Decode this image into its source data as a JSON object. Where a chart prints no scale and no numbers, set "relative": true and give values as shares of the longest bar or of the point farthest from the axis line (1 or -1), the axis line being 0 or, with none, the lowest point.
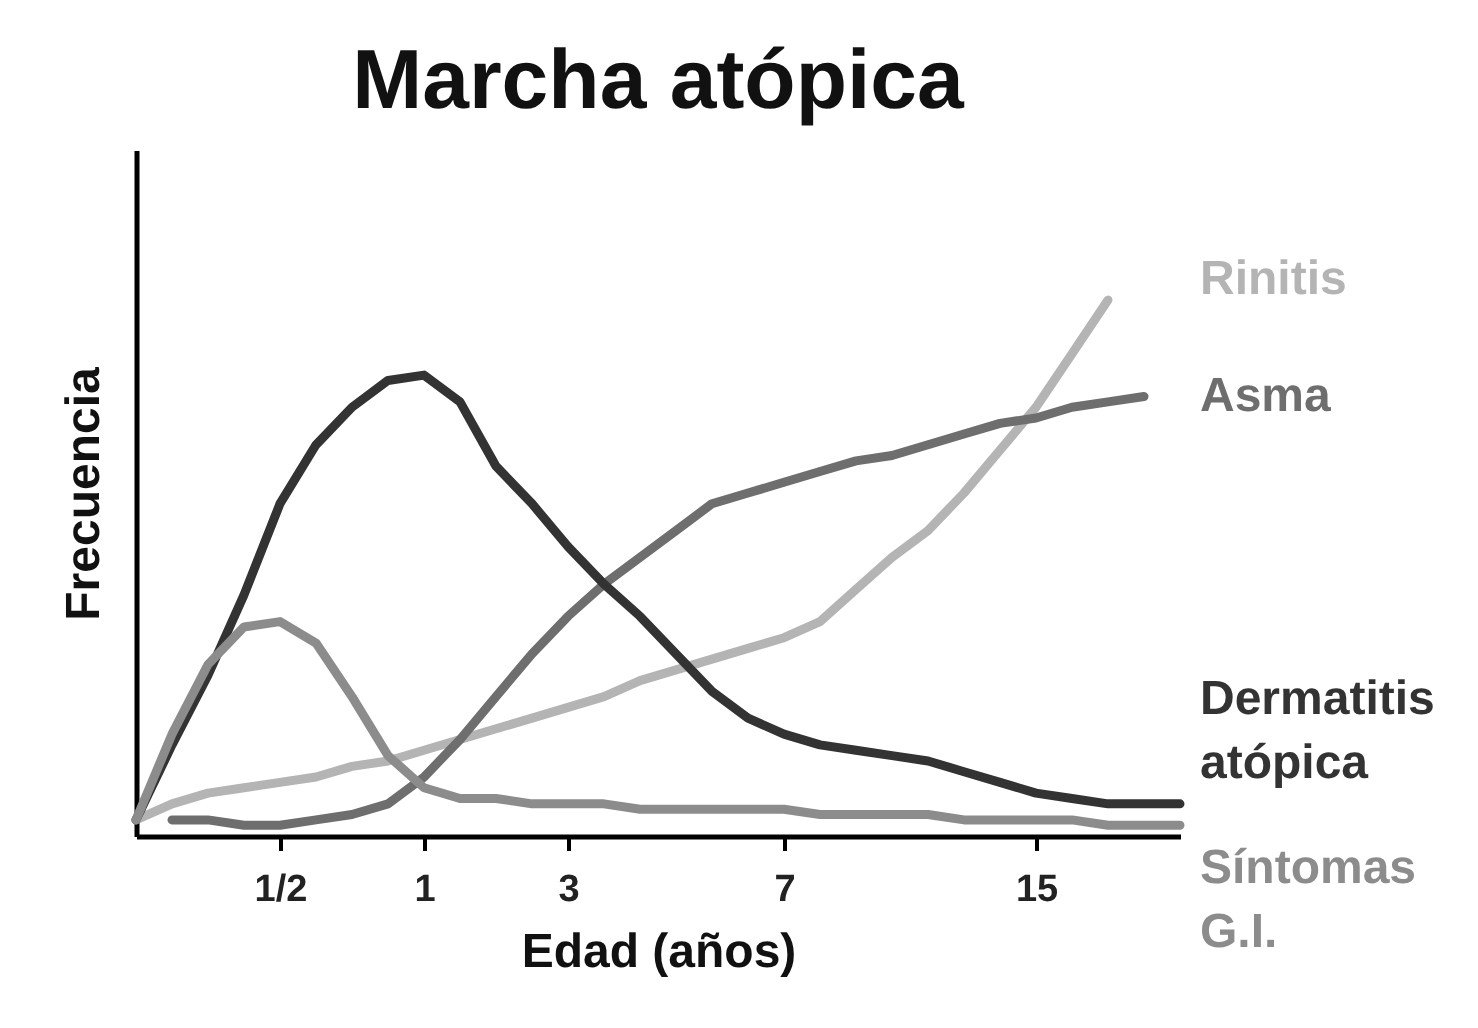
{
  "chart_data": {
    "type": "line",
    "title": "Marcha atópica",
    "xlabel": "Edad (años)",
    "ylabel": "Frecuencia",
    "relative": true,
    "categories": [
      null,
      null,
      null,
      null,
      "1/2",
      null,
      null,
      null,
      "1",
      null,
      null,
      null,
      "3",
      null,
      null,
      null,
      null,
      null,
      "7",
      null,
      null,
      null,
      null,
      null,
      null,
      "15",
      null,
      null,
      null,
      null
    ],
    "series": [
      {
        "name": "Rinitis",
        "color": "#b4b4b4",
        "values": [
          0.03,
          0.06,
          0.08,
          0.09,
          0.1,
          0.11,
          0.13,
          0.14,
          0.16,
          0.18,
          0.2,
          0.22,
          0.24,
          0.26,
          0.29,
          0.31,
          0.33,
          0.35,
          0.37,
          0.4,
          0.46,
          0.52,
          0.57,
          0.64,
          0.72,
          0.8,
          0.9,
          1.0,
          null,
          null
        ]
      },
      {
        "name": "Asma",
        "color": "#6e6e6e",
        "values": [
          null,
          0.03,
          0.03,
          0.02,
          0.02,
          0.03,
          0.04,
          0.06,
          0.11,
          0.18,
          0.26,
          0.34,
          0.41,
          0.47,
          0.52,
          0.57,
          0.62,
          0.64,
          0.66,
          0.68,
          0.7,
          0.71,
          0.73,
          0.75,
          0.77,
          0.78,
          0.8,
          0.81,
          0.82,
          null
        ]
      },
      {
        "name": "Dermatitis atópica",
        "color": "#333333",
        "values": [
          0.03,
          0.17,
          0.3,
          0.45,
          0.62,
          0.73,
          0.8,
          0.85,
          0.86,
          0.81,
          0.69,
          0.62,
          0.54,
          0.47,
          0.41,
          0.34,
          0.27,
          0.22,
          0.19,
          0.17,
          0.16,
          0.15,
          0.14,
          0.12,
          0.1,
          0.08,
          0.07,
          0.06,
          0.06,
          0.06
        ]
      },
      {
        "name": "Síntomas G.I.",
        "color": "#8c8c8c",
        "values": [
          0.03,
          0.19,
          0.32,
          0.39,
          0.4,
          0.36,
          0.26,
          0.15,
          0.09,
          0.07,
          0.07,
          0.06,
          0.06,
          0.06,
          0.05,
          0.05,
          0.05,
          0.05,
          0.05,
          0.04,
          0.04,
          0.04,
          0.04,
          0.03,
          0.03,
          0.03,
          0.03,
          0.02,
          0.02,
          0.02
        ]
      }
    ],
    "line_style": "solid",
    "marker": "none"
  }
}
